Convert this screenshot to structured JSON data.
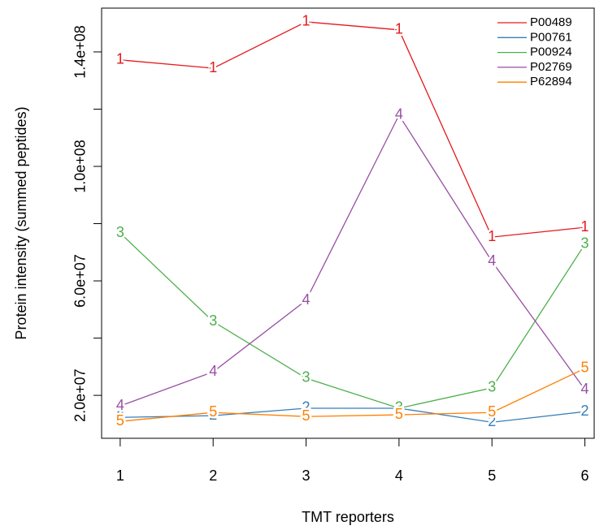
{
  "chart_data": {
    "type": "line",
    "xlabel": "TMT reporters",
    "ylabel": "Protein intensity (summed peptides)",
    "x": [
      1,
      2,
      3,
      4,
      5,
      6
    ],
    "xlim": [
      0.8,
      6.1
    ],
    "xticks": [
      1,
      2,
      3,
      4,
      5,
      6
    ],
    "ylim": [
      5000000,
      155300000
    ],
    "yticks": [
      {
        "value": 20000000,
        "label": "2.0e+07"
      },
      {
        "value": 60000000,
        "label": "6.0e+07"
      },
      {
        "value": 100000000,
        "label": "1.0e+08"
      },
      {
        "value": 140000000,
        "label": "1.4e+08"
      }
    ],
    "yminor": [
      40000000,
      80000000,
      120000000
    ],
    "legend": "top-right",
    "series": [
      {
        "name": "P00489",
        "marker": "1",
        "color": "#e41a1c",
        "values": [
          137200000,
          134300000,
          150500000,
          147700000,
          75300000,
          78700000
        ]
      },
      {
        "name": "P00761",
        "marker": "2",
        "color": "#377eb8",
        "values": [
          12300000,
          12900000,
          15500000,
          15500000,
          10600000,
          14300000
        ]
      },
      {
        "name": "P00924",
        "marker": "3",
        "color": "#4daf4a",
        "values": [
          76700000,
          45800000,
          26000000,
          15500000,
          22600000,
          72800000
        ]
      },
      {
        "name": "P02769",
        "marker": "4",
        "color": "#984ea3",
        "values": [
          16300000,
          28200000,
          53200000,
          117900000,
          66800000,
          22000000
        ]
      },
      {
        "name": "P62894",
        "marker": "5",
        "color": "#ff7f00",
        "values": [
          10900000,
          14000000,
          12600000,
          13200000,
          14000000,
          29400000
        ]
      }
    ]
  }
}
